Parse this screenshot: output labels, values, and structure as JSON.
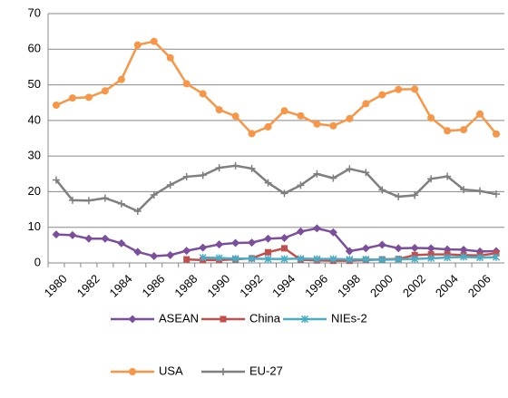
{
  "chart_data": {
    "type": "line",
    "categories": [
      "1980",
      null,
      "1982",
      null,
      "1984",
      null,
      "1986",
      null,
      "1988",
      null,
      "1990",
      null,
      "1992",
      null,
      "1994",
      null,
      "1996",
      null,
      "1998",
      null,
      "2000",
      null,
      "2002",
      null,
      "2004",
      null,
      "2006",
      null
    ],
    "series": [
      {
        "name": "ASEAN",
        "color": "#7b4f9d",
        "marker": "diamond",
        "values": [
          8,
          7.8,
          6.8,
          6.8,
          5.5,
          3.1,
          1.9,
          2.2,
          3.4,
          4.3,
          5.2,
          5.6,
          5.7,
          6.8,
          7,
          8.8,
          9.7,
          8.6,
          3.3,
          4.1,
          5.1,
          4.1,
          4.2,
          4.1,
          3.8,
          3.7,
          3.2,
          3.3
        ]
      },
      {
        "name": "China",
        "color": "#c0504d",
        "marker": "square",
        "values": [
          null,
          null,
          null,
          null,
          null,
          null,
          null,
          null,
          1,
          0.8,
          0.8,
          1,
          1.3,
          3,
          4.1,
          0.9,
          0.7,
          0.6,
          0.6,
          0.8,
          1,
          1.1,
          2.2,
          2.4,
          2.4,
          2.2,
          2.1,
          2.7
        ]
      },
      {
        "name": "NIEs-2",
        "color": "#4bacc6",
        "marker": "star",
        "values": [
          null,
          null,
          null,
          null,
          null,
          null,
          null,
          null,
          null,
          1.5,
          1.4,
          1.2,
          1.2,
          1.1,
          1.1,
          1.2,
          1.1,
          1.1,
          1.0,
          1.0,
          0.9,
          1.0,
          1.1,
          1.3,
          1.5,
          1.7,
          1.5,
          1.6
        ]
      },
      {
        "name": "USA",
        "color": "#f79646",
        "marker": "circle",
        "values": [
          44.3,
          46.3,
          46.5,
          48.3,
          51.5,
          61.2,
          62.2,
          57.6,
          50.3,
          47.5,
          43,
          41.2,
          36.3,
          38.2,
          42.7,
          41.3,
          39,
          38.5,
          40.5,
          44.7,
          47.2,
          48.7,
          48.8,
          40.7,
          37.1,
          37.4,
          41.8,
          36.2
        ]
      },
      {
        "name": "EU-27",
        "color": "#7f7f7f",
        "marker": "plus",
        "values": [
          23.3,
          17.6,
          17.5,
          18.2,
          16.6,
          14.5,
          19.1,
          21.9,
          24.2,
          24.6,
          26.7,
          27.3,
          26.5,
          22.5,
          19.5,
          21.8,
          25,
          23.8,
          26.4,
          25.4,
          20.5,
          18.6,
          19,
          23.6,
          24.3,
          20.6,
          20.2,
          19.3
        ]
      }
    ],
    "ylim": [
      0,
      70
    ],
    "yticks": [
      0,
      10,
      20,
      30,
      40,
      50,
      60,
      70
    ],
    "grid": true
  }
}
